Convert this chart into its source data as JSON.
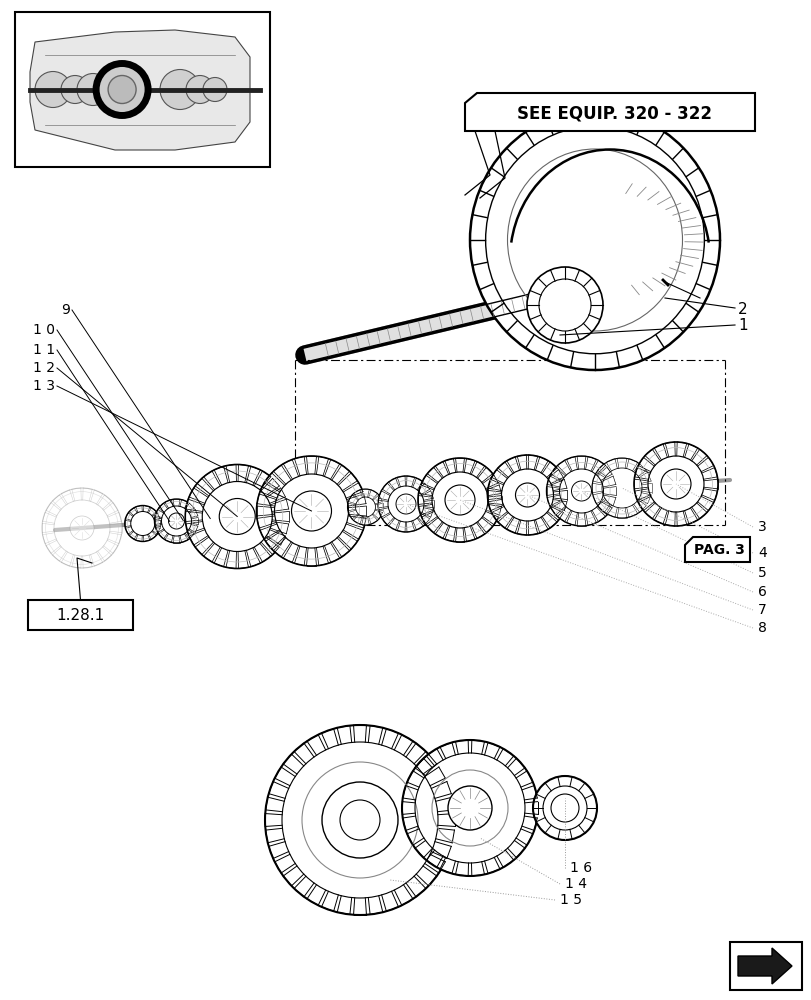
{
  "bg_color": "#ffffff",
  "title_box_text": "SEE EQUIP. 320 - 322",
  "pag3_text": "PAG. 3",
  "ref_box_text": "1.28.1",
  "left_labels": [
    [
      "9",
      70,
      310
    ],
    [
      "1 0",
      55,
      330
    ],
    [
      "1 1",
      55,
      350
    ],
    [
      "1 2",
      55,
      368
    ],
    [
      "1 3",
      55,
      386
    ]
  ],
  "right_labels": [
    [
      "3",
      758,
      527
    ],
    [
      "4",
      758,
      553
    ],
    [
      "5",
      758,
      573
    ],
    [
      "6",
      758,
      592
    ],
    [
      "7",
      758,
      610
    ],
    [
      "8",
      758,
      628
    ]
  ],
  "bottom_labels": [
    [
      "1 6",
      570,
      868
    ],
    [
      "1 4",
      565,
      884
    ],
    [
      "1 5",
      560,
      900
    ]
  ],
  "item1_label": "1",
  "item2_label": "2"
}
